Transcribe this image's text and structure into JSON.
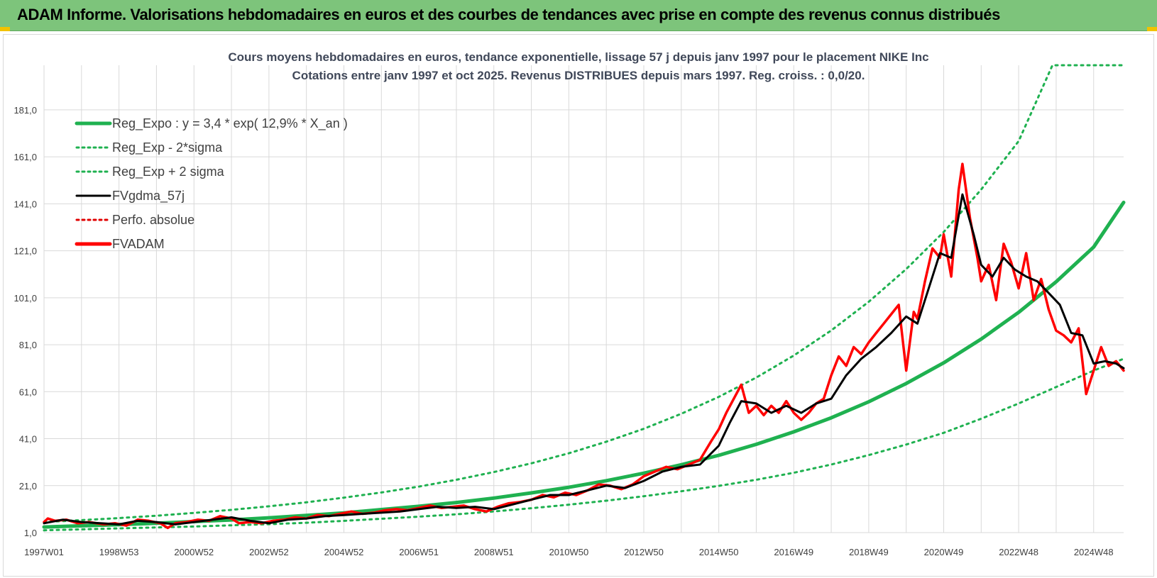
{
  "banner": {
    "title": "ADAM Informe. Valorisations hebdomadaires en euros et des courbes de tendances avec prise en compte des revenus connus distribués"
  },
  "chart_data": {
    "type": "line",
    "title_lines": [
      "Cours moyens hebdomadaires en euros, tendance exponentielle, lissage 57 j depuis janv 1997 pour le placement NIKE Inc",
      "Cotations entre janv 1997 et oct 2025. Revenus DISTRIBUES depuis mars 1997. Reg. croiss. : 0,0/20."
    ],
    "x_range": [
      1997.0,
      2025.8
    ],
    "ylim": [
      1,
      200
    ],
    "y_ticks": [
      "1,0",
      "21,0",
      "41,0",
      "61,0",
      "81,0",
      "101,0",
      "121,0",
      "141,0",
      "161,0",
      "181,0"
    ],
    "y_tick_values": [
      1,
      21,
      41,
      61,
      81,
      101,
      121,
      141,
      161,
      181
    ],
    "x_ticks": [
      "1997W01",
      "1998W53",
      "2000W52",
      "2002W52",
      "2004W52",
      "2006W51",
      "2008W51",
      "2010W50",
      "2012W50",
      "2014W50",
      "2016W49",
      "2018W49",
      "2020W49",
      "2022W48",
      "2024W48"
    ],
    "x_tick_values": [
      1997.0,
      1999.0,
      2001.0,
      2003.0,
      2005.0,
      2007.0,
      2009.0,
      2011.0,
      2013.0,
      2015.0,
      2017.0,
      2019.0,
      2021.0,
      2023.0,
      2025.0
    ],
    "grid": true,
    "legend_position": "top-left",
    "legend": [
      {
        "label": "Reg_Expo : y = 3,4 * exp( 12,9% *  X_an )",
        "color": "#1fb150",
        "style": "solid-thick"
      },
      {
        "label": "Reg_Exp - 2*sigma",
        "color": "#1fb150",
        "style": "dotted"
      },
      {
        "label": "Reg_Exp + 2 sigma",
        "color": "#1fb150",
        "style": "dotted"
      },
      {
        "label": "FVgdma_57j",
        "color": "#000000",
        "style": "solid"
      },
      {
        "label": "Perfo. absolue",
        "color": "#e00000",
        "style": "dotted"
      },
      {
        "label": "FVADAM",
        "color": "#ff0000",
        "style": "solid-thick"
      }
    ],
    "series": [
      {
        "name": "Reg_Expo : y = 3,4 * exp( 12,9% *  X_an )",
        "x": [
          1997.0,
          1998.0,
          1999.0,
          2000.0,
          2001.0,
          2002.0,
          2003.0,
          2004.0,
          2005.0,
          2006.0,
          2007.0,
          2008.0,
          2009.0,
          2010.0,
          2011.0,
          2012.0,
          2013.0,
          2014.0,
          2015.0,
          2016.0,
          2017.0,
          2018.0,
          2019.0,
          2020.0,
          2021.0,
          2022.0,
          2023.0,
          2024.0,
          2025.0,
          2025.8
        ],
        "values": [
          3.4,
          3.9,
          4.4,
          5.0,
          5.7,
          6.4,
          7.3,
          8.3,
          9.4,
          10.8,
          12.2,
          13.8,
          15.7,
          17.9,
          20.3,
          23.1,
          26.3,
          29.9,
          33.9,
          38.6,
          43.9,
          49.9,
          56.7,
          64.5,
          73.3,
          83.4,
          94.8,
          107.8,
          122.6,
          141.6
        ]
      },
      {
        "name": "Reg_Exp - 2*sigma",
        "x": [
          1997.0,
          1998.0,
          1999.0,
          2000.0,
          2001.0,
          2002.0,
          2003.0,
          2004.0,
          2005.0,
          2006.0,
          2007.0,
          2008.0,
          2009.0,
          2010.0,
          2011.0,
          2012.0,
          2013.0,
          2014.0,
          2015.0,
          2016.0,
          2017.0,
          2018.0,
          2019.0,
          2020.0,
          2021.0,
          2022.0,
          2023.0,
          2024.0,
          2025.0,
          2025.8
        ],
        "values": [
          2.0,
          2.4,
          2.8,
          3.2,
          3.6,
          4.1,
          4.6,
          5.2,
          6.0,
          6.9,
          7.8,
          8.8,
          10.0,
          11.4,
          12.9,
          14.6,
          16.5,
          18.6,
          20.9,
          23.5,
          26.5,
          30.0,
          34.0,
          38.5,
          43.5,
          49.5,
          56.0,
          63.0,
          70.0,
          75.0
        ]
      },
      {
        "name": "Reg_Exp + 2 sigma",
        "x": [
          1997.0,
          1998.0,
          1999.0,
          2000.0,
          2001.0,
          2002.0,
          2003.0,
          2004.0,
          2005.0,
          2006.0,
          2007.0,
          2008.0,
          2009.0,
          2010.0,
          2011.0,
          2012.0,
          2013.0,
          2014.0,
          2015.0,
          2016.0,
          2017.0,
          2018.0,
          2019.0,
          2020.0,
          2021.0,
          2022.0,
          2023.0,
          2023.9,
          2025.8
        ],
        "values": [
          5.5,
          6.3,
          7.2,
          8.2,
          9.4,
          10.7,
          12.2,
          13.9,
          15.9,
          18.1,
          20.6,
          23.5,
          26.8,
          30.5,
          34.8,
          39.7,
          45.2,
          51.6,
          58.8,
          67.0,
          76.4,
          87.1,
          99.3,
          113.2,
          129.0,
          147.1,
          167.7,
          200.0,
          200.0
        ]
      },
      {
        "name": "FVgdma_57j",
        "x": [
          1997.0,
          1997.5,
          1998.0,
          1998.5,
          1999.0,
          1999.5,
          2000.0,
          2000.5,
          2001.0,
          2001.5,
          2002.0,
          2002.5,
          2003.0,
          2003.5,
          2004.0,
          2004.5,
          2005.0,
          2005.5,
          2006.0,
          2006.5,
          2007.0,
          2007.5,
          2008.0,
          2008.5,
          2009.0,
          2009.5,
          2010.0,
          2010.5,
          2011.0,
          2011.5,
          2012.0,
          2012.5,
          2013.0,
          2013.5,
          2014.0,
          2014.5,
          2015.0,
          2015.3,
          2015.6,
          2016.0,
          2016.4,
          2016.8,
          2017.2,
          2017.6,
          2018.0,
          2018.4,
          2018.8,
          2019.2,
          2019.6,
          2020.0,
          2020.3,
          2020.6,
          2020.9,
          2021.2,
          2021.5,
          2021.8,
          2022.0,
          2022.3,
          2022.6,
          2022.9,
          2023.2,
          2023.5,
          2023.8,
          2024.1,
          2024.4,
          2024.7,
          2025.0,
          2025.3,
          2025.6,
          2025.8
        ],
        "values": [
          5.0,
          6.5,
          5.5,
          5.0,
          4.5,
          6.0,
          5.5,
          4.5,
          5.5,
          6.5,
          7.5,
          6.0,
          5.0,
          6.5,
          7.0,
          8.0,
          8.5,
          9.0,
          9.5,
          10.0,
          11.0,
          12.0,
          11.5,
          12.0,
          11.0,
          13.0,
          15.0,
          17.0,
          17.0,
          19.0,
          21.0,
          20.0,
          23.0,
          27.0,
          29.0,
          30.0,
          38.0,
          48.0,
          57.0,
          56.0,
          52.0,
          55.0,
          52.0,
          56.0,
          58.0,
          68.0,
          75.0,
          80.0,
          86.0,
          93.0,
          90.0,
          105.0,
          120.0,
          118.0,
          145.0,
          128.0,
          115.0,
          110.0,
          118.0,
          113.0,
          110.0,
          108.0,
          103.0,
          98.0,
          86.0,
          85.0,
          73.0,
          74.0,
          73.0,
          71.0
        ]
      },
      {
        "name": "FVADAM",
        "x": [
          1997.0,
          1997.1,
          1997.3,
          1997.6,
          1997.9,
          1998.2,
          1998.6,
          1998.9,
          1999.2,
          1999.5,
          1999.8,
          2000.1,
          2000.3,
          2000.5,
          2000.8,
          2001.1,
          2001.4,
          2001.7,
          2002.0,
          2002.2,
          2002.5,
          2002.8,
          2003.1,
          2003.4,
          2003.7,
          2004.0,
          2004.3,
          2004.6,
          2004.9,
          2005.2,
          2005.5,
          2005.8,
          2006.1,
          2006.4,
          2006.7,
          2007.0,
          2007.3,
          2007.6,
          2007.9,
          2008.2,
          2008.5,
          2008.8,
          2009.1,
          2009.4,
          2009.7,
          2010.0,
          2010.3,
          2010.6,
          2010.9,
          2011.2,
          2011.5,
          2011.8,
          2012.1,
          2012.4,
          2012.7,
          2013.0,
          2013.3,
          2013.6,
          2013.9,
          2014.2,
          2014.5,
          2014.8,
          2015.0,
          2015.2,
          2015.4,
          2015.6,
          2015.8,
          2016.0,
          2016.2,
          2016.4,
          2016.6,
          2016.8,
          2017.0,
          2017.2,
          2017.4,
          2017.6,
          2017.8,
          2018.0,
          2018.2,
          2018.4,
          2018.6,
          2018.8,
          2019.0,
          2019.2,
          2019.4,
          2019.6,
          2019.8,
          2020.0,
          2020.2,
          2020.3,
          2020.5,
          2020.7,
          2020.9,
          2021.0,
          2021.2,
          2021.4,
          2021.5,
          2021.7,
          2021.9,
          2022.0,
          2022.2,
          2022.4,
          2022.6,
          2022.8,
          2023.0,
          2023.2,
          2023.4,
          2023.6,
          2023.8,
          2024.0,
          2024.2,
          2024.4,
          2024.6,
          2024.8,
          2025.0,
          2025.2,
          2025.4,
          2025.6,
          2025.8
        ],
        "values": [
          5.5,
          7.0,
          6.0,
          6.5,
          5.0,
          5.5,
          4.5,
          5.0,
          4.0,
          6.5,
          6.0,
          5.0,
          3.0,
          5.0,
          5.5,
          6.5,
          6.0,
          8.0,
          7.0,
          5.0,
          5.5,
          5.0,
          6.0,
          6.5,
          7.5,
          7.0,
          8.5,
          8.0,
          9.0,
          10.0,
          9.0,
          9.5,
          10.5,
          11.0,
          10.5,
          11.5,
          12.5,
          11.5,
          12.0,
          12.5,
          11.0,
          10.0,
          12.0,
          13.5,
          14.0,
          15.0,
          17.0,
          16.0,
          18.0,
          17.0,
          19.0,
          21.5,
          21.0,
          19.5,
          21.5,
          25.0,
          27.0,
          29.0,
          28.0,
          30.0,
          32.0,
          40.0,
          45.0,
          52.0,
          58.0,
          64.0,
          52.0,
          55.0,
          51.0,
          55.0,
          52.0,
          57.0,
          52.0,
          49.0,
          52.0,
          56.0,
          58.0,
          68.0,
          76.0,
          72.0,
          80.0,
          77.0,
          82.0,
          86.0,
          90.0,
          94.0,
          98.0,
          70.0,
          95.0,
          92.0,
          108.0,
          122.0,
          118.0,
          128.0,
          110.0,
          147.0,
          158.0,
          135.0,
          118.0,
          108.0,
          115.0,
          100.0,
          124.0,
          116.0,
          105.0,
          120.0,
          100.0,
          109.0,
          96.0,
          87.0,
          85.0,
          82.0,
          88.0,
          60.0,
          70.0,
          80.0,
          72.0,
          74.0,
          70.0
        ]
      }
    ]
  }
}
